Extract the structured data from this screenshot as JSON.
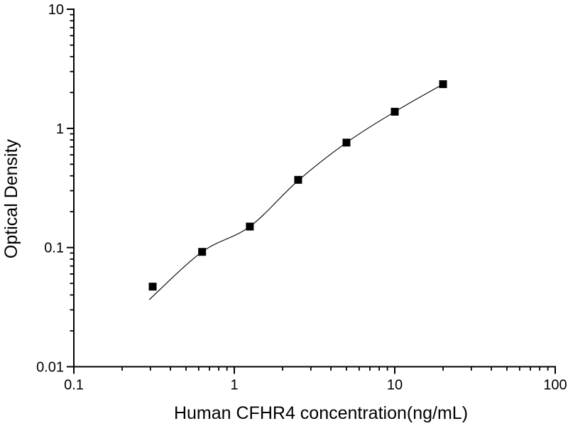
{
  "figure": {
    "background_color": "#ffffff",
    "axis_color": "#000000",
    "marker_color": "#000000",
    "curve_color": "#000000"
  },
  "chart_data": {
    "type": "scatter",
    "title": "",
    "xlabel": "Human CFHR4 concentration(ng/mL)",
    "ylabel": "Optical Density",
    "x_scale": "log",
    "y_scale": "log",
    "xlim": [
      0.1,
      100
    ],
    "ylim": [
      0.01,
      10
    ],
    "x_ticks": [
      0.1,
      1,
      10,
      100
    ],
    "x_tick_labels": [
      "0.1",
      "1",
      "10",
      "100"
    ],
    "y_ticks": [
      0.01,
      0.1,
      1,
      10
    ],
    "y_tick_labels": [
      "0.01",
      "0.1",
      "1",
      "10"
    ],
    "grid": false,
    "legend": null,
    "series": [
      {
        "name": "standard-curve-points",
        "marker": "filled-square",
        "color": "#000000",
        "x": [
          0.31,
          0.63,
          1.25,
          2.5,
          5,
          10,
          20
        ],
        "y": [
          0.047,
          0.092,
          0.15,
          0.37,
          0.76,
          1.38,
          2.35
        ]
      }
    ],
    "fit_curve": {
      "name": "fitted-standard-curve",
      "color": "#000000",
      "points": [
        [
          0.295,
          0.0365
        ],
        [
          0.63,
          0.092
        ],
        [
          1.25,
          0.15
        ],
        [
          2.5,
          0.365
        ],
        [
          5,
          0.76
        ],
        [
          10,
          1.38
        ],
        [
          20,
          2.35
        ]
      ]
    }
  }
}
